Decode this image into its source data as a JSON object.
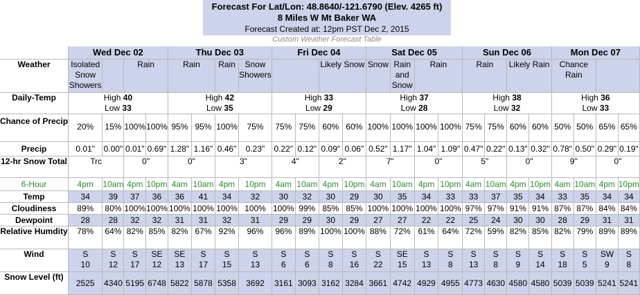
{
  "header": {
    "title": "Forecast For Lat/Lon: 48.8640/-121.6790 (Elev. 4265 ft)",
    "location": "8 Miles W Mt Baker WA",
    "created": "Forecast Created at: 12pm PST Dec 2, 2015",
    "subtitle": "Custom Weather Forecast Table"
  },
  "labels": {
    "weather": "Weather",
    "daily_temp": "Daily-Temp",
    "chance_precip": "Chance of Precip",
    "precip": "Precip",
    "snow_total": "12-hr Snow Total",
    "six_hour": "6-Hour",
    "temp": "Temp",
    "cloudiness": "Cloudiness",
    "dewpoint": "Dewpoint",
    "humidity": "Relative Humdity",
    "wind": "Wind",
    "snow_level": "Snow Level (ft)"
  },
  "days": [
    {
      "name": "Wed Dec 02",
      "high_label": "High",
      "high": "40",
      "low_label": "Low",
      "low": "33",
      "snow": [
        "Trc",
        "0\""
      ]
    },
    {
      "name": "Thu Dec 03",
      "high_label": "High",
      "high": "42",
      "low_label": "Low",
      "low": "35",
      "snow": [
        "0\"",
        "3\""
      ]
    },
    {
      "name": "Fri Dec 04",
      "high_label": "High",
      "high": "33",
      "low_label": "Low",
      "low": "29",
      "snow": [
        "4\"",
        "2\""
      ]
    },
    {
      "name": "Sat Dec 05",
      "high_label": "High",
      "high": "37",
      "low_label": "Low",
      "low": "28",
      "snow": [
        "7\"",
        "0\""
      ]
    },
    {
      "name": "Sun Dec 06",
      "high_label": "High",
      "high": "38",
      "low_label": "Low",
      "low": "32",
      "snow": [
        "5\"",
        "0\""
      ]
    },
    {
      "name": "Mon Dec 07",
      "high_label": "High",
      "high": "36",
      "low_label": "Low",
      "low": "33",
      "snow": [
        "9\"",
        "0\""
      ]
    }
  ],
  "weather": [
    [
      "Isolated Snow Showers",
      "",
      "Rain"
    ],
    [
      "Rain",
      "Rain",
      "Snow Showers"
    ],
    [
      "",
      "Likely Snow",
      "Snow"
    ],
    [
      "Rain and Snow",
      "Rain",
      ""
    ],
    [
      "Rain",
      "",
      "Likely Rain"
    ],
    [
      "Chance Rain",
      "",
      ""
    ]
  ],
  "chance_precip": [
    "20%",
    "15%",
    "100%",
    "100%",
    "95%",
    "95%",
    "100%",
    "75%",
    "75%",
    "75%",
    "60%",
    "60%",
    "100%",
    "100%",
    "100%",
    "100%",
    "75%",
    "75%",
    "60%",
    "60%",
    "50%",
    "50%",
    "65%",
    "65%"
  ],
  "precip": [
    "0.01\"",
    "0.00\"",
    "0.01\"",
    "0.69\"",
    "1.28\"",
    "1.16\"",
    "0.46\"",
    "0.23\"",
    "0.22\"",
    "0.12\"",
    "0.09\"",
    "0.06\"",
    "0.52\"",
    "1.17\"",
    "1.04\"",
    "1.09\"",
    "0.47\"",
    "0.22\"",
    "0.13\"",
    "0.32\"",
    "0.78\"",
    "0.50\"",
    "0.29\"",
    "0.19\""
  ],
  "hours": [
    "4pm",
    "10am",
    "4pm",
    "10pm"
  ],
  "hours_alt": [
    "4am",
    "10am",
    "4pm",
    "10pm"
  ],
  "temp": [
    "34",
    "39",
    "37",
    "36",
    "36",
    "41",
    "34",
    "32",
    "30",
    "32",
    "30",
    "29",
    "30",
    "35",
    "34",
    "33",
    "33",
    "37",
    "35",
    "34",
    "33",
    "35",
    "34",
    "34"
  ],
  "cloudiness": [
    "89%",
    "80%",
    "100%",
    "100%",
    "100%",
    "100%",
    "100%",
    "100%",
    "100%",
    "99%",
    "85%",
    "85%",
    "100%",
    "100%",
    "100%",
    "100%",
    "97%",
    "97%",
    "91%",
    "91%",
    "87%",
    "87%",
    "84%",
    "84%"
  ],
  "dewpoint": [
    "28",
    "28",
    "32",
    "32",
    "31",
    "31",
    "32",
    "31",
    "29",
    "29",
    "30",
    "29",
    "27",
    "27",
    "22",
    "22",
    "25",
    "24",
    "30",
    "30",
    "28",
    "29",
    "31",
    "31"
  ],
  "humidity": [
    "78%",
    "64%",
    "82%",
    "85%",
    "82%",
    "67%",
    "92%",
    "96%",
    "96%",
    "89%",
    "100%",
    "100%",
    "88%",
    "72%",
    "61%",
    "64%",
    "72%",
    "59%",
    "82%",
    "85%",
    "82%",
    "79%",
    "89%",
    "89%"
  ],
  "wind_dir": [
    "S",
    "S",
    "S",
    "SE",
    "SE",
    "S",
    "S",
    "S",
    "S",
    "S",
    "S",
    "S",
    "S",
    "SE",
    "S",
    "S",
    "S",
    "S",
    "S",
    "S",
    "S",
    "S",
    "SW",
    "S"
  ],
  "wind_speed": [
    "10",
    "12",
    "17",
    "12",
    "13",
    "17",
    "15",
    "13",
    "6",
    "6",
    "8",
    "16",
    "22",
    "15",
    "13",
    "8",
    "13",
    "8",
    "9",
    "14",
    "18",
    "5",
    "9",
    "8"
  ],
  "snow_level": [
    "2525",
    "4340",
    "5195",
    "6748",
    "5822",
    "5878",
    "5358",
    "3692",
    "3161",
    "3093",
    "3162",
    "3284",
    "3661",
    "4742",
    "4929",
    "4955",
    "4773",
    "4630",
    "4580",
    "4580",
    "5039",
    "5039",
    "5241",
    "5241"
  ]
}
